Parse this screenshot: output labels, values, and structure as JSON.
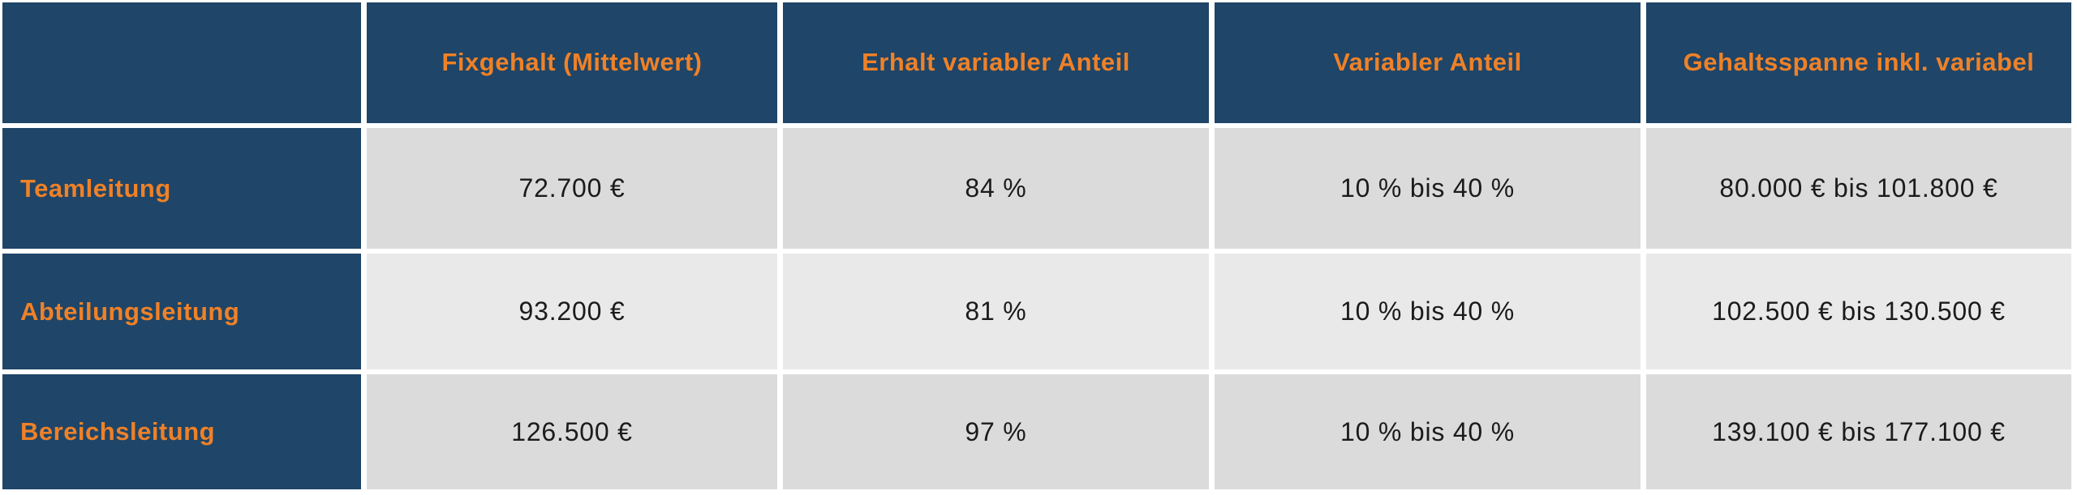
{
  "colors": {
    "navy": "#1f4568",
    "orange": "#ef8127",
    "row_odd_bg": "#dbdbdb",
    "row_even_bg": "#e9e9e9",
    "value_text": "#1b1b1b",
    "separator": "#ffffff"
  },
  "chart_data": {
    "type": "table",
    "title": "",
    "columns": [
      "",
      "Fixgehalt (Mittelwert)",
      "Erhalt variabler Anteil",
      "Variabler Anteil",
      "Gehaltsspanne inkl. variabel"
    ],
    "rows": [
      [
        "Teamleitung",
        "72.700 €",
        "84 %",
        "10 % bis 40 %",
        "80.000 € bis 101.800 €"
      ],
      [
        "Abteilungsleitung",
        "93.200 €",
        "81 %",
        "10 % bis 40 %",
        "102.500 € bis 130.500 €"
      ],
      [
        "Bereichsleitung",
        "126.500 €",
        "97 %",
        "10 % bis 40 %",
        "139.100 € bis 177.100 €"
      ]
    ]
  }
}
